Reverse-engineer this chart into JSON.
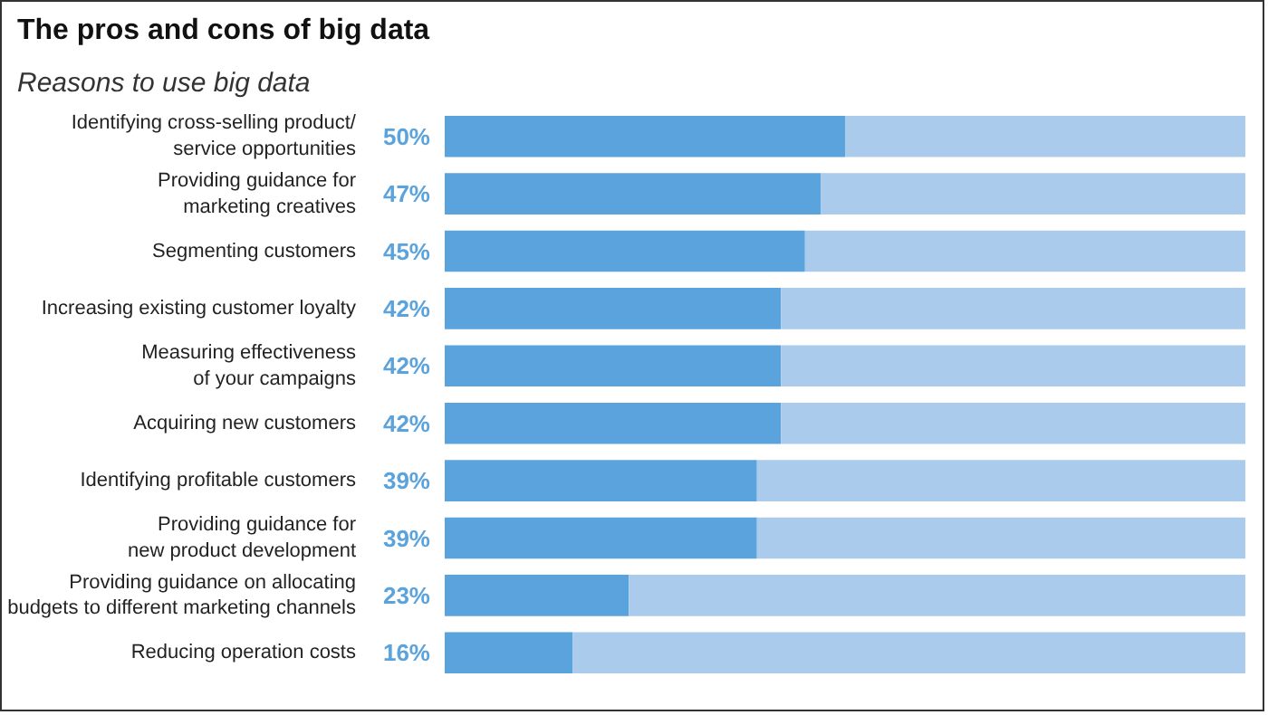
{
  "chart_data": {
    "type": "bar",
    "orientation": "horizontal",
    "stacked": true,
    "title": "The pros and cons of big data",
    "subtitle": "Reasons to use big data",
    "categories": [
      "Identifying cross-selling product/\nservice opportunities",
      "Providing guidance for\nmarketing creatives",
      "Segmenting customers",
      "Increasing existing customer loyalty",
      "Measuring effectiveness\nof your campaigns",
      "Acquiring new customers",
      "Identifying profitable customers",
      "Providing guidance for\nnew product development",
      "Providing guidance on allocating\nbudgets to different marketing channels",
      "Reducing operation costs"
    ],
    "series": [
      {
        "color": "#5ba3dc",
        "values": [
          50,
          47,
          45,
          42,
          42,
          42,
          39,
          39,
          23,
          16
        ],
        "value_labels": [
          "50%",
          "47%",
          "45%",
          "42%",
          "42%",
          "42%",
          "39%",
          "39%",
          "23%",
          "16%"
        ]
      },
      {
        "color": "#aacbec",
        "values": [
          50,
          53,
          55,
          58,
          58,
          58,
          61,
          61,
          77,
          84
        ]
      }
    ],
    "xlim": [
      0,
      100
    ],
    "tick_labels": "y",
    "grid": false
  }
}
